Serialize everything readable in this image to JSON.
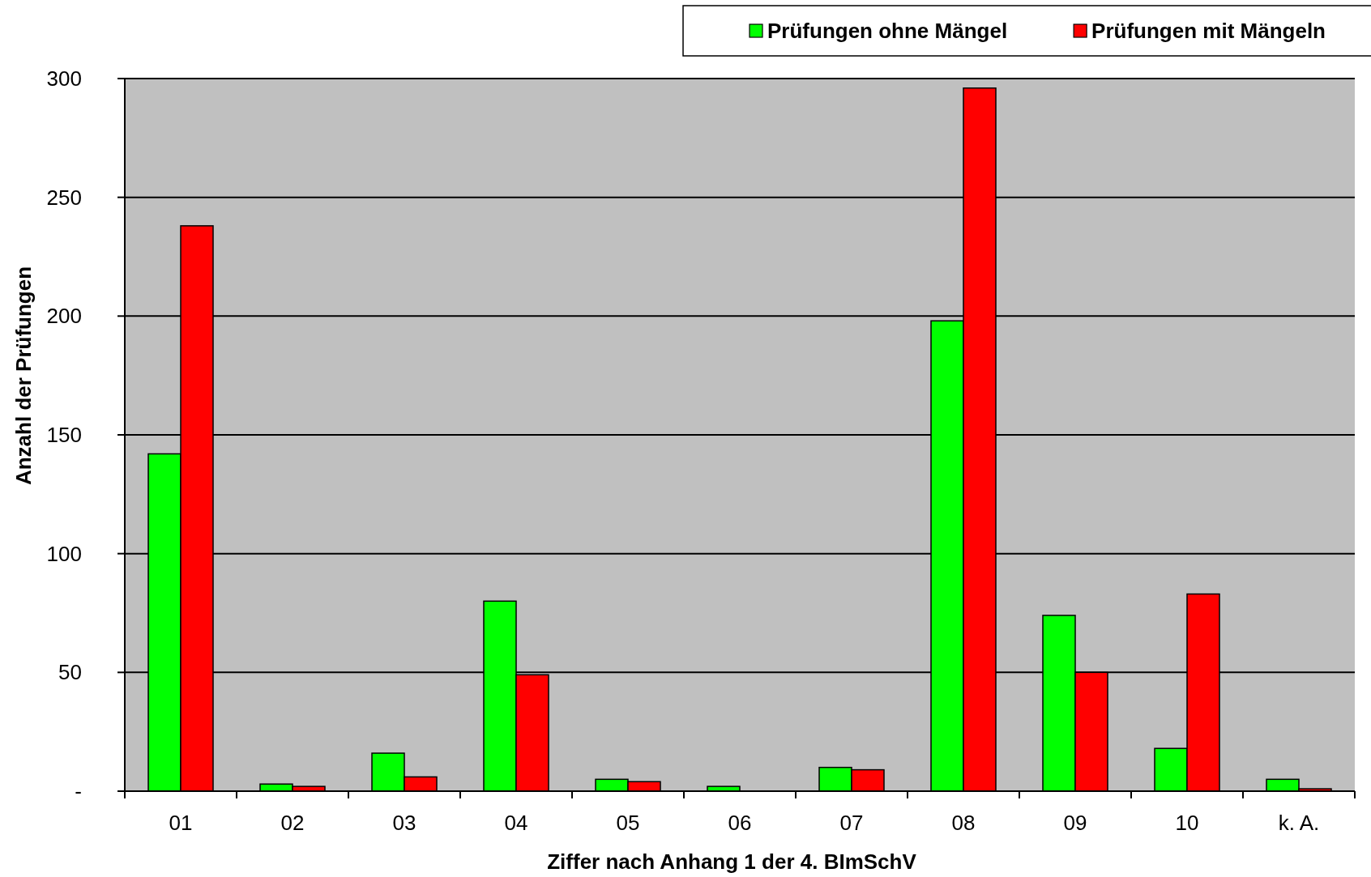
{
  "chart_data": {
    "type": "bar",
    "xlabel": "Ziffer nach Anhang 1 der 4. BImSchV",
    "ylabel": "Anzahl der Prüfungen",
    "categories": [
      "01",
      "02",
      "03",
      "04",
      "05",
      "06",
      "07",
      "08",
      "09",
      "10",
      "k. A."
    ],
    "series": [
      {
        "name": "Prüfungen ohne Mängel",
        "color": "#00ff00",
        "values": [
          142,
          3,
          16,
          80,
          5,
          2,
          10,
          198,
          74,
          18,
          5
        ]
      },
      {
        "name": "Prüfungen mit Mängeln",
        "color": "#ff0000",
        "values": [
          238,
          2,
          6,
          49,
          4,
          0,
          9,
          296,
          50,
          83,
          1
        ]
      }
    ],
    "ylim": [
      0,
      300
    ],
    "yticks": [
      {
        "value": 0,
        "label": "-"
      },
      50,
      100,
      150,
      200,
      250,
      300
    ],
    "grid": "y",
    "legend": "top right"
  }
}
